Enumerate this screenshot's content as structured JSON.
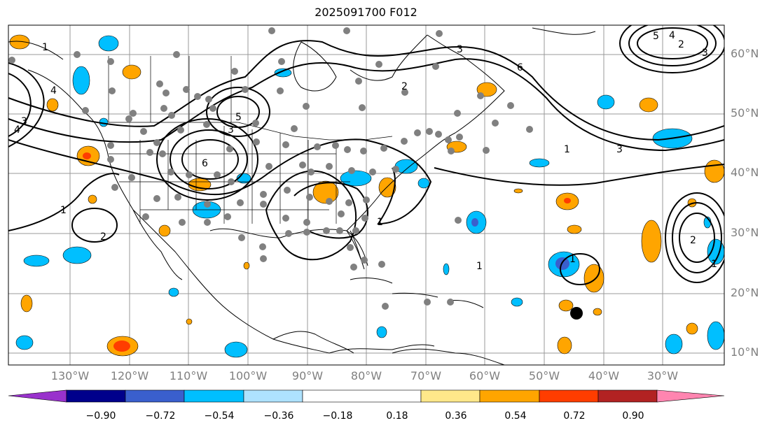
{
  "title": "2025091700 F012",
  "lat_labels": [
    "60°N",
    "50°N",
    "40°N",
    "30°N",
    "20°N",
    "10°N"
  ],
  "lon_labels": [
    "130°W",
    "120°W",
    "110°W",
    "100°W",
    "90°W",
    "80°W",
    "70°W",
    "60°W",
    "50°W",
    "40°W",
    "30°W"
  ],
  "colorbar": {
    "ticks": [
      "−0.90",
      "−0.72",
      "−0.54",
      "−0.36",
      "−0.18",
      "0.18",
      "0.36",
      "0.54",
      "0.72",
      "0.90"
    ],
    "colors": [
      "#9932cc",
      "#00008b",
      "#3a5fcd",
      "#00bfff",
      "#aee2ff",
      "#ffffff",
      "#ffe88a",
      "#ffa500",
      "#ff3d00",
      "#b22222",
      "#ff85b0"
    ]
  },
  "contour_labels": [
    "6",
    "5",
    "4",
    "3",
    "2",
    "1"
  ]
}
